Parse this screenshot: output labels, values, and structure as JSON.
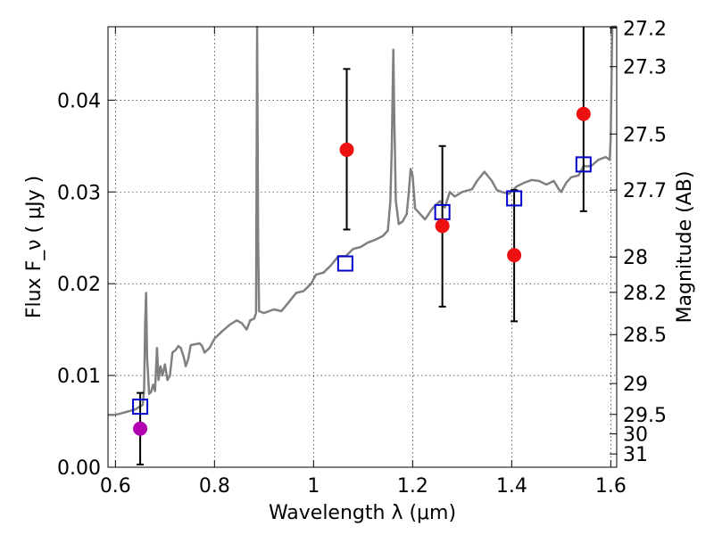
{
  "chart_data": {
    "type": "scatter",
    "xlabel": "Wavelength  λ (μm)",
    "ylabel": "Flux  F_ν  ( μJy )",
    "ylabel_right": "Magnitude (AB)",
    "xlim": [
      0.585,
      1.612
    ],
    "ylim": [
      0.0,
      0.048
    ],
    "grid": true,
    "x_ticks": [
      {
        "value": 0.6,
        "label": "0.6"
      },
      {
        "value": 0.8,
        "label": "0.8"
      },
      {
        "value": 1.0,
        "label": "1"
      },
      {
        "value": 1.2,
        "label": "1.2"
      },
      {
        "value": 1.4,
        "label": "1.4"
      },
      {
        "value": 1.6,
        "label": "1.6"
      }
    ],
    "y_ticks": [
      {
        "value": 0.0,
        "label": "0.00"
      },
      {
        "value": 0.01,
        "label": "0.01"
      },
      {
        "value": 0.02,
        "label": "0.02"
      },
      {
        "value": 0.03,
        "label": "0.03"
      },
      {
        "value": 0.04,
        "label": "0.04"
      }
    ],
    "mag_ticks": [
      {
        "value": 27.2,
        "label": "27.2"
      },
      {
        "value": 27.3,
        "label": "27.3"
      },
      {
        "value": 27.5,
        "label": "27.5"
      },
      {
        "value": 27.7,
        "label": "27.7"
      },
      {
        "value": 28.0,
        "label": "28"
      },
      {
        "value": 28.2,
        "label": "28.2"
      },
      {
        "value": 28.5,
        "label": "28.5"
      },
      {
        "value": 29.0,
        "label": "29"
      },
      {
        "value": 29.5,
        "label": "29.5"
      },
      {
        "value": 30.0,
        "label": "30"
      },
      {
        "value": 31.0,
        "label": "31"
      }
    ],
    "model_spectrum": {
      "color": "#808080",
      "points": [
        [
          0.585,
          0.0057
        ],
        [
          0.6,
          0.0057
        ],
        [
          0.62,
          0.006
        ],
        [
          0.64,
          0.0063
        ],
        [
          0.655,
          0.0068
        ],
        [
          0.658,
          0.0085
        ],
        [
          0.66,
          0.0155
        ],
        [
          0.662,
          0.019
        ],
        [
          0.664,
          0.012
        ],
        [
          0.668,
          0.008
        ],
        [
          0.672,
          0.0082
        ],
        [
          0.676,
          0.009
        ],
        [
          0.68,
          0.0083
        ],
        [
          0.684,
          0.013
        ],
        [
          0.687,
          0.0095
        ],
        [
          0.691,
          0.011
        ],
        [
          0.695,
          0.01
        ],
        [
          0.7,
          0.0112
        ],
        [
          0.705,
          0.0095
        ],
        [
          0.71,
          0.01
        ],
        [
          0.715,
          0.0125
        ],
        [
          0.722,
          0.0128
        ],
        [
          0.727,
          0.0132
        ],
        [
          0.732,
          0.013
        ],
        [
          0.738,
          0.012
        ],
        [
          0.742,
          0.011
        ],
        [
          0.747,
          0.0118
        ],
        [
          0.752,
          0.0133
        ],
        [
          0.76,
          0.0134
        ],
        [
          0.77,
          0.0135
        ],
        [
          0.775,
          0.0132
        ],
        [
          0.78,
          0.0125
        ],
        [
          0.79,
          0.013
        ],
        [
          0.8,
          0.014
        ],
        [
          0.815,
          0.0148
        ],
        [
          0.83,
          0.0155
        ],
        [
          0.845,
          0.016
        ],
        [
          0.855,
          0.0157
        ],
        [
          0.865,
          0.015
        ],
        [
          0.872,
          0.016
        ],
        [
          0.88,
          0.0162
        ],
        [
          0.884,
          0.0168
        ],
        [
          0.886,
          0.048
        ],
        [
          0.888,
          0.025
        ],
        [
          0.89,
          0.017
        ],
        [
          0.9,
          0.0168
        ],
        [
          0.92,
          0.0172
        ],
        [
          0.935,
          0.017
        ],
        [
          0.95,
          0.018
        ],
        [
          0.965,
          0.019
        ],
        [
          0.98,
          0.0192
        ],
        [
          0.995,
          0.02
        ],
        [
          1.005,
          0.021
        ],
        [
          1.02,
          0.0212
        ],
        [
          1.035,
          0.022
        ],
        [
          1.05,
          0.023
        ],
        [
          1.065,
          0.023
        ],
        [
          1.08,
          0.0238
        ],
        [
          1.095,
          0.024
        ],
        [
          1.11,
          0.0245
        ],
        [
          1.125,
          0.0248
        ],
        [
          1.14,
          0.0252
        ],
        [
          1.15,
          0.0258
        ],
        [
          1.155,
          0.029
        ],
        [
          1.158,
          0.035
        ],
        [
          1.161,
          0.0455
        ],
        [
          1.163,
          0.038
        ],
        [
          1.166,
          0.029
        ],
        [
          1.172,
          0.0265
        ],
        [
          1.18,
          0.0268
        ],
        [
          1.188,
          0.0276
        ],
        [
          1.192,
          0.0298
        ],
        [
          1.196,
          0.0325
        ],
        [
          1.2,
          0.0318
        ],
        [
          1.205,
          0.0282
        ],
        [
          1.215,
          0.0276
        ],
        [
          1.225,
          0.027
        ],
        [
          1.24,
          0.0282
        ],
        [
          1.255,
          0.029
        ],
        [
          1.265,
          0.0283
        ],
        [
          1.275,
          0.03
        ],
        [
          1.285,
          0.0295
        ],
        [
          1.3,
          0.03
        ],
        [
          1.32,
          0.0303
        ],
        [
          1.33,
          0.0312
        ],
        [
          1.345,
          0.0322
        ],
        [
          1.36,
          0.0312
        ],
        [
          1.37,
          0.0302
        ],
        [
          1.38,
          0.03
        ],
        [
          1.395,
          0.0298
        ],
        [
          1.41,
          0.0306
        ],
        [
          1.425,
          0.031
        ],
        [
          1.44,
          0.0313
        ],
        [
          1.455,
          0.0312
        ],
        [
          1.47,
          0.0308
        ],
        [
          1.485,
          0.0312
        ],
        [
          1.495,
          0.0303
        ],
        [
          1.5,
          0.03
        ],
        [
          1.51,
          0.031
        ],
        [
          1.52,
          0.0316
        ],
        [
          1.535,
          0.0318
        ],
        [
          1.545,
          0.0328
        ],
        [
          1.56,
          0.0328
        ],
        [
          1.575,
          0.0335
        ],
        [
          1.59,
          0.0338
        ],
        [
          1.598,
          0.0335
        ],
        [
          1.6,
          0.036
        ],
        [
          1.603,
          0.048
        ],
        [
          1.612,
          0.048
        ]
      ]
    },
    "series": [
      {
        "marker": "square-open",
        "color": "#0000cc",
        "x": [
          0.65,
          1.064,
          1.26,
          1.405,
          1.545
        ],
        "y": [
          0.0066,
          0.0222,
          0.0278,
          0.0293,
          0.033
        ]
      },
      {
        "marker": "circle",
        "color": "#ee1111",
        "x": [
          1.067,
          1.26,
          1.405,
          1.545
        ],
        "y": [
          0.0346,
          0.0263,
          0.0231,
          0.0385
        ],
        "yerr_low": [
          0.0259,
          0.0175,
          0.0159,
          0.0279
        ],
        "yerr_high": [
          0.0434,
          0.035,
          0.0302,
          0.0492
        ]
      },
      {
        "marker": "circle",
        "color": "#b000b0",
        "x": [
          0.65
        ],
        "y": [
          0.0042
        ],
        "yerr_low": [
          0.0003
        ],
        "yerr_high": [
          0.0081
        ]
      }
    ]
  }
}
